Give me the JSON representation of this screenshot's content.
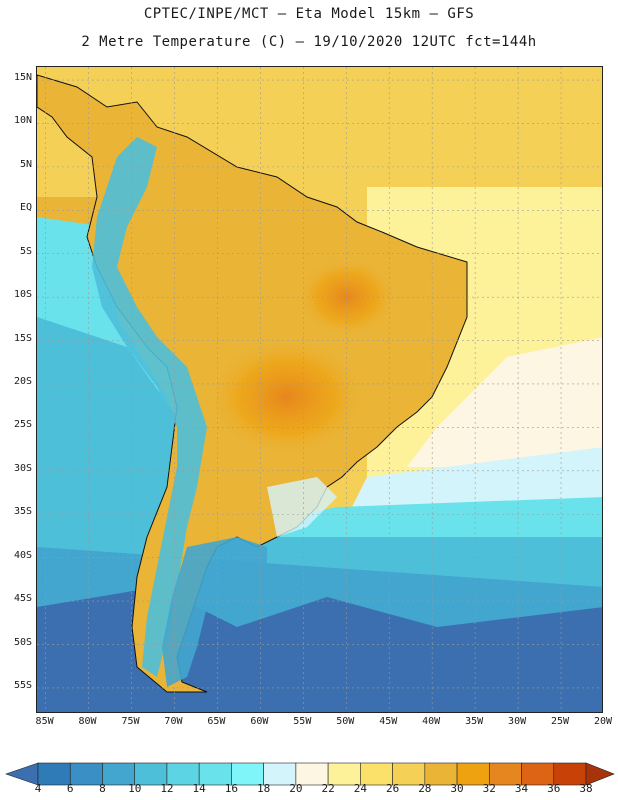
{
  "title_line1": "CPTEC/INPE/MCT –  Eta Model 15km – GFS",
  "title_line2": "2 Metre Temperature (C) – 19/10/2020 12UTC fct=144h",
  "lat_labels": [
    "15N",
    "10N",
    "5N",
    "EQ",
    "5S",
    "10S",
    "15S",
    "20S",
    "25S",
    "30S",
    "35S",
    "40S",
    "45S",
    "50S",
    "55S"
  ],
  "lat_values": [
    15,
    10,
    5,
    0,
    -5,
    -10,
    -15,
    -20,
    -25,
    -30,
    -35,
    -40,
    -45,
    -50,
    -55
  ],
  "lon_labels": [
    "85W",
    "80W",
    "75W",
    "70W",
    "65W",
    "60W",
    "55W",
    "50W",
    "45W",
    "40W",
    "35W",
    "30W",
    "25W",
    "20W"
  ],
  "lon_values": [
    -85,
    -80,
    -75,
    -70,
    -65,
    -60,
    -55,
    -50,
    -45,
    -40,
    -35,
    -30,
    -25,
    -20
  ],
  "lon_range": [
    -86,
    -20
  ],
  "lat_range": [
    -58,
    16.5
  ],
  "colorbar": {
    "labels": [
      "4",
      "6",
      "8",
      "10",
      "12",
      "14",
      "16",
      "18",
      "20",
      "22",
      "24",
      "26",
      "28",
      "30",
      "32",
      "34",
      "36",
      "38"
    ],
    "colors": [
      "#3b6fb0",
      "#2e7bb8",
      "#3a8fc4",
      "#42a6cf",
      "#4ebfd9",
      "#5dd4e3",
      "#6ae2ec",
      "#7ff5fa",
      "#d4f4fb",
      "#fcf6e2",
      "#fdf29a",
      "#fbe06a",
      "#f5d056",
      "#eab437",
      "#eea210",
      "#e6861e",
      "#dc6414",
      "#c84208",
      "#a8320a"
    ]
  }
}
